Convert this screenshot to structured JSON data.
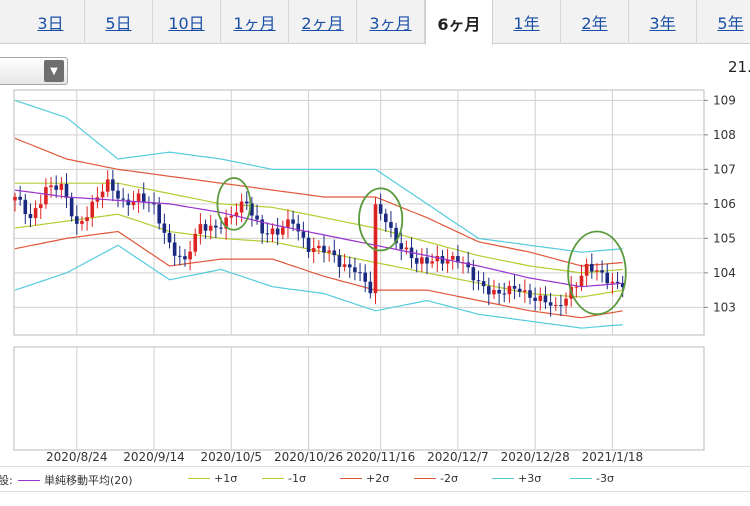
{
  "tabs": [
    {
      "label": "3日",
      "active": false
    },
    {
      "label": "5日",
      "active": false
    },
    {
      "label": "10日",
      "active": false
    },
    {
      "label": "1ヶ月",
      "active": false
    },
    {
      "label": "2ヶ月",
      "active": false
    },
    {
      "label": "3ヶ月",
      "active": false
    },
    {
      "label": "6ヶ月",
      "active": true
    },
    {
      "label": "1年",
      "active": false
    },
    {
      "label": "2年",
      "active": false
    },
    {
      "label": "3年",
      "active": false
    },
    {
      "label": "5年",
      "active": false
    }
  ],
  "corner_label": "21.",
  "legend": {
    "prefix": "設:",
    "items": [
      {
        "label": "単純移動平均(20)",
        "color": "#9933cc"
      },
      {
        "label": "+1σ",
        "color": "#b5cc33"
      },
      {
        "label": "-1σ",
        "color": "#b5cc33"
      },
      {
        "label": "+2σ",
        "color": "#e0583a"
      },
      {
        "label": "-2σ",
        "color": "#e0583a"
      },
      {
        "label": "+3σ",
        "color": "#55ccdd"
      },
      {
        "label": "-3σ",
        "color": "#55ccdd"
      }
    ]
  },
  "colors": {
    "up": "#dd2222",
    "down": "#1a2a80",
    "grid": "#d0d0d0",
    "ma": "#9933cc",
    "sigma1": "#b5cc33",
    "sigma2": "#e0583a",
    "sigma3": "#55ccdd",
    "annotation": "#5a9a3a"
  },
  "chart_data": {
    "type": "candlestick",
    "title": "",
    "ylim": [
      102.2,
      109.3
    ],
    "yticks": [
      103,
      104,
      105,
      106,
      107,
      108,
      109
    ],
    "xlim": [
      0,
      128
    ],
    "xticks": [
      {
        "label": "2020/8/24",
        "index": 12
      },
      {
        "label": "2020/9/14",
        "index": 27
      },
      {
        "label": "2020/10/5",
        "index": 42
      },
      {
        "label": "2020/10/26",
        "index": 57
      },
      {
        "label": "2020/11/16",
        "index": 71
      },
      {
        "label": "2020/12/7",
        "index": 86
      },
      {
        "label": "2020/12/28",
        "index": 101
      },
      {
        "label": "2021/1/18",
        "index": 116
      }
    ],
    "anchors": {
      "ma": [
        [
          0,
          106.4
        ],
        [
          10,
          106.2
        ],
        [
          20,
          106.1
        ],
        [
          30,
          106.0
        ],
        [
          40,
          105.75
        ],
        [
          50,
          105.4
        ],
        [
          60,
          105.1
        ],
        [
          70,
          104.8
        ],
        [
          80,
          104.5
        ],
        [
          90,
          104.2
        ],
        [
          100,
          103.85
        ],
        [
          110,
          103.6
        ],
        [
          118,
          103.7
        ]
      ],
      "plus1": [
        [
          0,
          106.6
        ],
        [
          10,
          106.6
        ],
        [
          20,
          106.6
        ],
        [
          30,
          106.3
        ],
        [
          40,
          106.0
        ],
        [
          50,
          105.9
        ],
        [
          60,
          105.6
        ],
        [
          70,
          105.3
        ],
        [
          80,
          104.9
        ],
        [
          90,
          104.5
        ],
        [
          100,
          104.2
        ],
        [
          110,
          104.0
        ],
        [
          118,
          104.1
        ]
      ],
      "minus1": [
        [
          0,
          105.3
        ],
        [
          10,
          105.5
        ],
        [
          20,
          105.7
        ],
        [
          30,
          105.2
        ],
        [
          40,
          105.0
        ],
        [
          50,
          104.9
        ],
        [
          60,
          104.6
        ],
        [
          70,
          104.3
        ],
        [
          80,
          104.0
        ],
        [
          90,
          103.7
        ],
        [
          100,
          103.4
        ],
        [
          110,
          103.3
        ],
        [
          118,
          103.5
        ]
      ],
      "plus2": [
        [
          0,
          107.9
        ],
        [
          10,
          107.3
        ],
        [
          20,
          107.0
        ],
        [
          30,
          106.8
        ],
        [
          40,
          106.6
        ],
        [
          50,
          106.4
        ],
        [
          60,
          106.2
        ],
        [
          70,
          106.2
        ],
        [
          80,
          105.6
        ],
        [
          90,
          104.9
        ],
        [
          100,
          104.6
        ],
        [
          110,
          104.2
        ],
        [
          118,
          104.3
        ]
      ],
      "minus2": [
        [
          0,
          104.7
        ],
        [
          10,
          105.0
        ],
        [
          20,
          105.2
        ],
        [
          30,
          104.2
        ],
        [
          40,
          104.4
        ],
        [
          50,
          104.4
        ],
        [
          60,
          103.9
        ],
        [
          70,
          103.5
        ],
        [
          80,
          103.5
        ],
        [
          90,
          103.2
        ],
        [
          100,
          102.9
        ],
        [
          110,
          102.7
        ],
        [
          118,
          102.9
        ]
      ],
      "plus3": [
        [
          0,
          109.0
        ],
        [
          10,
          108.5
        ],
        [
          20,
          107.3
        ],
        [
          30,
          107.5
        ],
        [
          40,
          107.3
        ],
        [
          50,
          107.0
        ],
        [
          60,
          107.0
        ],
        [
          70,
          107.0
        ],
        [
          80,
          106.0
        ],
        [
          90,
          105.0
        ],
        [
          100,
          104.8
        ],
        [
          110,
          104.6
        ],
        [
          118,
          104.7
        ]
      ],
      "minus3": [
        [
          0,
          103.5
        ],
        [
          10,
          104.0
        ],
        [
          20,
          104.8
        ],
        [
          30,
          103.8
        ],
        [
          40,
          104.1
        ],
        [
          50,
          103.6
        ],
        [
          60,
          103.4
        ],
        [
          70,
          102.9
        ],
        [
          80,
          103.2
        ],
        [
          90,
          102.8
        ],
        [
          100,
          102.6
        ],
        [
          110,
          102.4
        ],
        [
          118,
          102.5
        ]
      ]
    },
    "close_anchors": [
      [
        0,
        106.1
      ],
      [
        3,
        105.6
      ],
      [
        6,
        106.5
      ],
      [
        9,
        106.4
      ],
      [
        12,
        105.4
      ],
      [
        15,
        106.0
      ],
      [
        18,
        106.5
      ],
      [
        21,
        106.1
      ],
      [
        24,
        106.2
      ],
      [
        27,
        105.8
      ],
      [
        30,
        104.9
      ],
      [
        33,
        104.3
      ],
      [
        36,
        105.3
      ],
      [
        39,
        105.4
      ],
      [
        42,
        105.6
      ],
      [
        45,
        106.0
      ],
      [
        48,
        105.3
      ],
      [
        51,
        105.1
      ],
      [
        54,
        105.5
      ],
      [
        57,
        104.8
      ],
      [
        60,
        104.6
      ],
      [
        63,
        104.3
      ],
      [
        66,
        104.2
      ],
      [
        69,
        103.4
      ],
      [
        70,
        105.8
      ],
      [
        72,
        105.6
      ],
      [
        74,
        105.0
      ],
      [
        78,
        104.2
      ],
      [
        82,
        104.5
      ],
      [
        86,
        104.3
      ],
      [
        90,
        103.8
      ],
      [
        94,
        103.3
      ],
      [
        98,
        103.6
      ],
      [
        102,
        103.2
      ],
      [
        105,
        102.9
      ],
      [
        108,
        103.6
      ],
      [
        111,
        104.1
      ],
      [
        114,
        103.9
      ],
      [
        117,
        103.75
      ]
    ],
    "annotations": [
      {
        "center_index": 42.5,
        "center_value": 106.0,
        "rx_index": 3.2,
        "ry_value": 0.75
      },
      {
        "center_index": 71.0,
        "center_value": 105.55,
        "rx_index": 4.2,
        "ry_value": 0.9
      },
      {
        "center_index": 113.0,
        "center_value": 104.0,
        "rx_index": 5.6,
        "ry_value": 1.2
      }
    ]
  }
}
